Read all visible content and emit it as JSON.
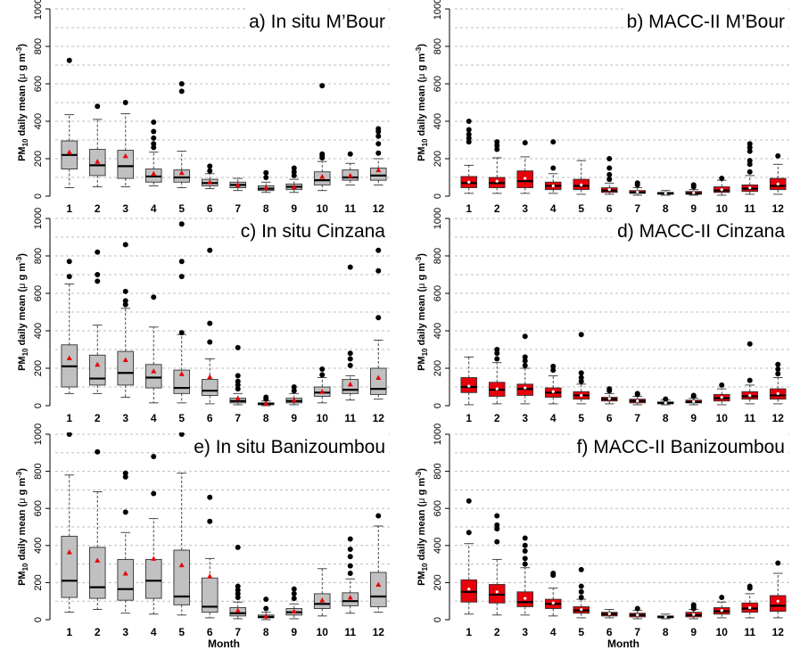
{
  "figure": {
    "xlabel": "Month",
    "ylabel_prefix": "PM",
    "ylabel_sub": "10",
    "ylabel_suffix": " daily mean (",
    "ylabel_mu": "μ",
    "ylabel_unit": " g m",
    "ylabel_sup": "-3",
    "ylabel_close": ")"
  },
  "chart_data": [
    {
      "type": "box",
      "title": "a)    In situ M’Bour",
      "xlabel": "",
      "ylabel": "PM10 daily mean (μ g m-3)",
      "ylim": [
        0,
        1000
      ],
      "yticks": [
        0,
        200,
        400,
        600,
        800,
        1000
      ],
      "grid": true,
      "box_color": "#c0c0c0",
      "categories": [
        "1",
        "2",
        "3",
        "4",
        "5",
        "6",
        "7",
        "8",
        "9",
        "10",
        "11",
        "12"
      ],
      "boxes": [
        {
          "q1": 145,
          "median": 220,
          "q3": 295,
          "wlo": 45,
          "whi": 435,
          "mean": 235,
          "out": [
            725
          ]
        },
        {
          "q1": 110,
          "median": 165,
          "q3": 250,
          "wlo": 50,
          "whi": 410,
          "mean": 185,
          "out": [
            480
          ]
        },
        {
          "q1": 95,
          "median": 160,
          "q3": 245,
          "wlo": 50,
          "whi": 440,
          "mean": 215,
          "out": [
            500
          ]
        },
        {
          "q1": 75,
          "median": 105,
          "q3": 145,
          "wlo": 55,
          "whi": 235,
          "mean": 120,
          "out": [
            260,
            280,
            310,
            345,
            395
          ]
        },
        {
          "q1": 75,
          "median": 100,
          "q3": 140,
          "wlo": 45,
          "whi": 240,
          "mean": 125,
          "out": [
            560,
            600
          ]
        },
        {
          "q1": 55,
          "median": 70,
          "q3": 90,
          "wlo": 40,
          "whi": 120,
          "mean": 75,
          "out": [
            135,
            160
          ]
        },
        {
          "q1": 45,
          "median": 60,
          "q3": 75,
          "wlo": 30,
          "whi": 95,
          "mean": 60,
          "out": []
        },
        {
          "q1": 30,
          "median": 40,
          "q3": 55,
          "wlo": 20,
          "whi": 75,
          "mean": 45,
          "out": [
            100,
            125
          ]
        },
        {
          "q1": 35,
          "median": 50,
          "q3": 65,
          "wlo": 20,
          "whi": 90,
          "mean": 50,
          "out": [
            110,
            130,
            150
          ]
        },
        {
          "q1": 60,
          "median": 85,
          "q3": 130,
          "wlo": 30,
          "whi": 185,
          "mean": 105,
          "out": [
            205,
            215,
            225,
            590
          ]
        },
        {
          "q1": 85,
          "median": 100,
          "q3": 140,
          "wlo": 60,
          "whi": 175,
          "mean": 110,
          "out": [
            225
          ]
        },
        {
          "q1": 85,
          "median": 110,
          "q3": 150,
          "wlo": 60,
          "whi": 200,
          "mean": 140,
          "out": [
            230,
            280,
            320,
            345,
            360
          ]
        }
      ]
    },
    {
      "type": "box",
      "title": "b)    MACC-II M’Bour",
      "xlabel": "",
      "ylabel": "PM10 daily mean (μ g m-3)",
      "ylim": [
        0,
        1000
      ],
      "yticks": [
        0,
        200,
        400,
        600,
        800,
        1000
      ],
      "grid": true,
      "box_color": "#e8000b",
      "categories": [
        "1",
        "2",
        "3",
        "4",
        "5",
        "6",
        "7",
        "8",
        "9",
        "10",
        "11",
        "12"
      ],
      "boxes": [
        {
          "q1": 45,
          "median": 70,
          "q3": 105,
          "wlo": 15,
          "whi": 165,
          "mean": 75,
          "out": [
            290,
            310,
            330,
            355,
            400
          ]
        },
        {
          "q1": 45,
          "median": 70,
          "q3": 100,
          "wlo": 15,
          "whi": 205,
          "mean": 80,
          "out": [
            250,
            270,
            290
          ]
        },
        {
          "q1": 45,
          "median": 80,
          "q3": 135,
          "wlo": 15,
          "whi": 210,
          "mean": 95,
          "out": [
            285
          ]
        },
        {
          "q1": 35,
          "median": 55,
          "q3": 75,
          "wlo": 15,
          "whi": 120,
          "mean": 55,
          "out": [
            150,
            290
          ]
        },
        {
          "q1": 35,
          "median": 55,
          "q3": 90,
          "wlo": 10,
          "whi": 190,
          "mean": 60,
          "out": []
        },
        {
          "q1": 20,
          "median": 30,
          "q3": 45,
          "wlo": 10,
          "whi": 70,
          "mean": 35,
          "out": [
            90,
            115,
            150,
            200
          ]
        },
        {
          "q1": 15,
          "median": 20,
          "q3": 30,
          "wlo": 5,
          "whi": 45,
          "mean": 22,
          "out": [
            60,
            70
          ]
        },
        {
          "q1": 10,
          "median": 15,
          "q3": 20,
          "wlo": 5,
          "whi": 30,
          "mean": 15,
          "out": []
        },
        {
          "q1": 10,
          "median": 15,
          "q3": 25,
          "wlo": 5,
          "whi": 35,
          "mean": 18,
          "out": [
            50,
            60
          ]
        },
        {
          "q1": 20,
          "median": 30,
          "q3": 50,
          "wlo": 5,
          "whi": 85,
          "mean": 35,
          "out": [
            95
          ]
        },
        {
          "q1": 25,
          "median": 40,
          "q3": 60,
          "wlo": 10,
          "whi": 110,
          "mean": 45,
          "out": [
            130,
            170,
            190,
            240,
            260,
            280
          ]
        },
        {
          "q1": 35,
          "median": 55,
          "q3": 95,
          "wlo": 10,
          "whi": 170,
          "mean": 65,
          "out": [
            215
          ]
        }
      ]
    },
    {
      "type": "box",
      "title": "c)    In situ Cinzana",
      "xlabel": "",
      "ylabel": "PM10 daily mean (μ g m-3)",
      "ylim": [
        0,
        1000
      ],
      "yticks": [
        0,
        200,
        400,
        600,
        800,
        1000
      ],
      "grid": true,
      "box_color": "#c0c0c0",
      "categories": [
        "1",
        "2",
        "3",
        "4",
        "5",
        "6",
        "7",
        "8",
        "9",
        "10",
        "11",
        "12"
      ],
      "boxes": [
        {
          "q1": 100,
          "median": 210,
          "q3": 325,
          "wlo": 65,
          "whi": 650,
          "mean": 255,
          "out": [
            690,
            770
          ]
        },
        {
          "q1": 110,
          "median": 145,
          "q3": 270,
          "wlo": 65,
          "whi": 430,
          "mean": 220,
          "out": [
            665,
            700,
            820
          ]
        },
        {
          "q1": 110,
          "median": 175,
          "q3": 290,
          "wlo": 45,
          "whi": 520,
          "mean": 245,
          "out": [
            540,
            560,
            610,
            860
          ]
        },
        {
          "q1": 95,
          "median": 150,
          "q3": 220,
          "wlo": 15,
          "whi": 420,
          "mean": 185,
          "out": [
            580,
            1050
          ]
        },
        {
          "q1": 65,
          "median": 95,
          "q3": 190,
          "wlo": 15,
          "whi": 380,
          "mean": 170,
          "out": [
            390,
            690,
            770,
            970,
            1050
          ]
        },
        {
          "q1": 55,
          "median": 80,
          "q3": 140,
          "wlo": 10,
          "whi": 250,
          "mean": 155,
          "out": [
            340,
            440,
            830
          ]
        },
        {
          "q1": 15,
          "median": 25,
          "q3": 40,
          "wlo": 5,
          "whi": 65,
          "mean": 40,
          "out": [
            90,
            110,
            130,
            160,
            310
          ]
        },
        {
          "q1": 5,
          "median": 10,
          "q3": 15,
          "wlo": 0,
          "whi": 25,
          "mean": 12,
          "out": [
            35,
            45
          ]
        },
        {
          "q1": 15,
          "median": 25,
          "q3": 40,
          "wlo": 5,
          "whi": 65,
          "mean": 30,
          "out": [
            80,
            100
          ]
        },
        {
          "q1": 50,
          "median": 70,
          "q3": 100,
          "wlo": 15,
          "whi": 150,
          "mean": 75,
          "out": [
            165,
            195
          ]
        },
        {
          "q1": 65,
          "median": 85,
          "q3": 140,
          "wlo": 30,
          "whi": 160,
          "mean": 115,
          "out": [
            215,
            250,
            280,
            740
          ]
        },
        {
          "q1": 60,
          "median": 90,
          "q3": 200,
          "wlo": 35,
          "whi": 350,
          "mean": 150,
          "out": [
            470,
            720,
            830
          ]
        }
      ]
    },
    {
      "type": "box",
      "title": "d)    MACC-II Cinzana",
      "xlabel": "",
      "ylabel": "PM10 daily mean (μ g m-3)",
      "ylim": [
        0,
        1000
      ],
      "yticks": [
        0,
        200,
        400,
        600,
        800,
        1000
      ],
      "grid": true,
      "box_color": "#e8000b",
      "categories": [
        "1",
        "2",
        "3",
        "4",
        "5",
        "6",
        "7",
        "8",
        "9",
        "10",
        "11",
        "12"
      ],
      "boxes": [
        {
          "q1": 70,
          "median": 100,
          "q3": 150,
          "wlo": 5,
          "whi": 260,
          "mean": 105,
          "out": []
        },
        {
          "q1": 50,
          "median": 85,
          "q3": 125,
          "wlo": 10,
          "whi": 230,
          "mean": 90,
          "out": [
            250,
            280,
            300
          ]
        },
        {
          "q1": 55,
          "median": 90,
          "q3": 115,
          "wlo": 10,
          "whi": 200,
          "mean": 95,
          "out": [
            215,
            240,
            260,
            370
          ]
        },
        {
          "q1": 45,
          "median": 70,
          "q3": 95,
          "wlo": 10,
          "whi": 160,
          "mean": 75,
          "out": [
            190,
            210
          ]
        },
        {
          "q1": 35,
          "median": 55,
          "q3": 75,
          "wlo": 10,
          "whi": 115,
          "mean": 55,
          "out": [
            130,
            150,
            175,
            380
          ]
        },
        {
          "q1": 25,
          "median": 35,
          "q3": 45,
          "wlo": 10,
          "whi": 65,
          "mean": 38,
          "out": [
            80,
            90
          ]
        },
        {
          "q1": 15,
          "median": 25,
          "q3": 35,
          "wlo": 5,
          "whi": 50,
          "mean": 25,
          "out": [
            60,
            65
          ]
        },
        {
          "q1": 10,
          "median": 15,
          "q3": 20,
          "wlo": 5,
          "whi": 30,
          "mean": 15,
          "out": [
            35
          ]
        },
        {
          "q1": 15,
          "median": 20,
          "q3": 30,
          "wlo": 5,
          "whi": 40,
          "mean": 22,
          "out": [
            50,
            55
          ]
        },
        {
          "q1": 25,
          "median": 40,
          "q3": 60,
          "wlo": 5,
          "whi": 90,
          "mean": 45,
          "out": [
            110
          ]
        },
        {
          "q1": 35,
          "median": 50,
          "q3": 75,
          "wlo": 10,
          "whi": 110,
          "mean": 55,
          "out": [
            135,
            330
          ]
        },
        {
          "q1": 35,
          "median": 55,
          "q3": 90,
          "wlo": 10,
          "whi": 150,
          "mean": 65,
          "out": [
            170,
            195,
            220
          ]
        }
      ]
    },
    {
      "type": "box",
      "title": "e)    In situ Banizoumbou",
      "xlabel": "Month",
      "ylabel": "PM10 daily mean (μ g m-3)",
      "ylim": [
        0,
        1000
      ],
      "yticks": [
        0,
        200,
        400,
        600,
        800,
        1000
      ],
      "grid": true,
      "box_color": "#c0c0c0",
      "categories": [
        "1",
        "2",
        "3",
        "4",
        "5",
        "6",
        "7",
        "8",
        "9",
        "10",
        "11",
        "12"
      ],
      "boxes": [
        {
          "q1": 120,
          "median": 210,
          "q3": 450,
          "wlo": 40,
          "whi": 780,
          "mean": 365,
          "out": [
            1000
          ]
        },
        {
          "q1": 115,
          "median": 175,
          "q3": 390,
          "wlo": 55,
          "whi": 690,
          "mean": 320,
          "out": [
            905
          ]
        },
        {
          "q1": 105,
          "median": 165,
          "q3": 325,
          "wlo": 35,
          "whi": 470,
          "mean": 250,
          "out": [
            580,
            770,
            790
          ]
        },
        {
          "q1": 115,
          "median": 210,
          "q3": 325,
          "wlo": 30,
          "whi": 545,
          "mean": 330,
          "out": [
            680,
            880
          ]
        },
        {
          "q1": 80,
          "median": 125,
          "q3": 375,
          "wlo": 25,
          "whi": 790,
          "mean": 295,
          "out": [
            1000
          ]
        },
        {
          "q1": 40,
          "median": 70,
          "q3": 225,
          "wlo": 10,
          "whi": 330,
          "mean": 235,
          "out": [
            530,
            660,
            1000
          ]
        },
        {
          "q1": 20,
          "median": 35,
          "q3": 65,
          "wlo": 5,
          "whi": 95,
          "mean": 50,
          "out": [
            120,
            140,
            160,
            180,
            390
          ]
        },
        {
          "q1": 10,
          "median": 15,
          "q3": 25,
          "wlo": 0,
          "whi": 40,
          "mean": 18,
          "out": [
            60,
            110
          ]
        },
        {
          "q1": 25,
          "median": 40,
          "q3": 60,
          "wlo": 5,
          "whi": 85,
          "mean": 45,
          "out": [
            115,
            140,
            165
          ]
        },
        {
          "q1": 60,
          "median": 85,
          "q3": 140,
          "wlo": 20,
          "whi": 275,
          "mean": 105,
          "out": []
        },
        {
          "q1": 75,
          "median": 100,
          "q3": 145,
          "wlo": 35,
          "whi": 220,
          "mean": 120,
          "out": [
            250,
            290,
            340,
            380,
            435
          ]
        },
        {
          "q1": 70,
          "median": 125,
          "q3": 255,
          "wlo": 40,
          "whi": 505,
          "mean": 190,
          "out": [
            560
          ]
        }
      ]
    },
    {
      "type": "box",
      "title": "f)    MACC-II Banizoumbou",
      "xlabel": "Month",
      "ylabel": "PM10 daily mean (μ g m-3)",
      "ylim": [
        0,
        1000
      ],
      "yticks": [
        0,
        200,
        400,
        600,
        800,
        1000
      ],
      "grid": true,
      "box_color": "#e8000b",
      "categories": [
        "1",
        "2",
        "3",
        "4",
        "5",
        "6",
        "7",
        "8",
        "9",
        "10",
        "11",
        "12"
      ],
      "boxes": [
        {
          "q1": 95,
          "median": 150,
          "q3": 215,
          "wlo": 30,
          "whi": 410,
          "mean": 165,
          "out": [
            470,
            640
          ]
        },
        {
          "q1": 90,
          "median": 135,
          "q3": 190,
          "wlo": 25,
          "whi": 325,
          "mean": 150,
          "out": [
            420,
            490,
            510,
            560
          ]
        },
        {
          "q1": 70,
          "median": 95,
          "q3": 150,
          "wlo": 25,
          "whi": 280,
          "mean": 115,
          "out": [
            300,
            330,
            370,
            400,
            440
          ]
        },
        {
          "q1": 60,
          "median": 85,
          "q3": 110,
          "wlo": 20,
          "whi": 170,
          "mean": 90,
          "out": [
            240,
            250
          ]
        },
        {
          "q1": 35,
          "median": 50,
          "q3": 70,
          "wlo": 10,
          "whi": 110,
          "mean": 55,
          "out": [
            120,
            150,
            180,
            270
          ]
        },
        {
          "q1": 20,
          "median": 30,
          "q3": 40,
          "wlo": 10,
          "whi": 55,
          "mean": 32,
          "out": []
        },
        {
          "q1": 15,
          "median": 25,
          "q3": 35,
          "wlo": 5,
          "whi": 50,
          "mean": 25,
          "out": [
            60
          ]
        },
        {
          "q1": 10,
          "median": 15,
          "q3": 20,
          "wlo": 5,
          "whi": 30,
          "mean": 15,
          "out": []
        },
        {
          "q1": 15,
          "median": 25,
          "q3": 40,
          "wlo": 5,
          "whi": 55,
          "mean": 28,
          "out": [
            60,
            70,
            80
          ]
        },
        {
          "q1": 30,
          "median": 45,
          "q3": 65,
          "wlo": 10,
          "whi": 95,
          "mean": 50,
          "out": [
            120
          ]
        },
        {
          "q1": 40,
          "median": 60,
          "q3": 90,
          "wlo": 10,
          "whi": 140,
          "mean": 65,
          "out": [
            170,
            180
          ]
        },
        {
          "q1": 45,
          "median": 75,
          "q3": 130,
          "wlo": 10,
          "whi": 250,
          "mean": 100,
          "out": [
            305
          ]
        }
      ]
    }
  ]
}
